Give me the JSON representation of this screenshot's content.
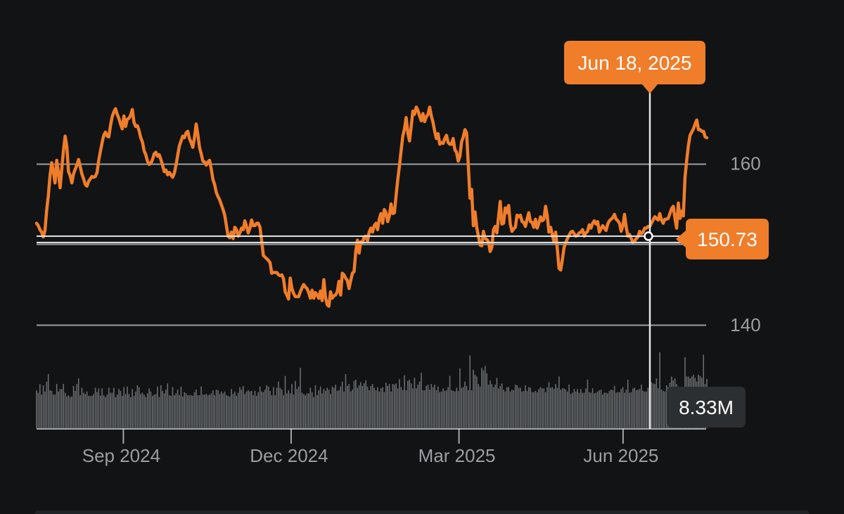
{
  "chart_data": {
    "type": "line",
    "colors": {
      "background": "#111314",
      "price_line": "#f07d2a",
      "grid": "#c9cdd0",
      "volume_bar": "#6a6d70",
      "tooltip_bg": "#f07d2a",
      "volume_tooltip_bg": "#2c2f32",
      "axis_text": "#9b9fa3"
    },
    "y_axis": {
      "position": "right",
      "ylim": [
        137,
        167
      ],
      "ticks": [
        140,
        160
      ]
    },
    "x_axis": {
      "tick_labels": [
        "Sep 2024",
        "Dec 2024",
        "Mar 2025",
        "Jun 2025"
      ]
    },
    "series": [
      {
        "values": [
          152.6,
          152.3,
          151.8,
          151.5,
          150.9,
          151.7,
          154.2,
          156.0,
          158.5,
          160.1,
          159.0,
          157.6,
          160.4,
          158.9,
          157.0,
          159.3,
          161.6,
          163.4,
          162.1,
          159.0,
          158.5,
          157.6,
          158.7,
          159.3,
          159.8,
          160.5,
          159.6,
          158.7,
          158.1,
          157.4,
          157.2,
          157.8,
          158.1,
          158.4,
          158.3,
          158.4,
          158.9,
          160.4,
          161.5,
          162.6,
          163.5,
          163.9,
          163.4,
          163.3,
          164.7,
          165.8,
          166.4,
          166.8,
          166.1,
          165.6,
          164.9,
          164.3,
          165.9,
          164.6,
          165.5,
          165.6,
          166.0,
          166.7,
          165.1,
          164.6,
          164.7,
          164.1,
          163.2,
          162.7,
          161.6,
          161.1,
          160.3,
          159.9,
          160.0,
          160.5,
          161.2,
          161.4,
          160.9,
          161.1,
          160.5,
          159.8,
          159.0,
          159.2,
          158.6,
          158.9,
          158.6,
          158.3,
          158.8,
          159.8,
          161.0,
          162.2,
          162.8,
          163.4,
          163.2,
          163.8,
          164.0,
          163.1,
          162.6,
          162.0,
          163.2,
          164.9,
          163.6,
          162.0,
          161.2,
          160.3,
          160.2,
          159.8,
          160.2,
          160.4,
          159.3,
          158.0,
          157.4,
          156.4,
          155.9,
          155.5,
          154.9,
          154.3,
          153.6,
          152.3,
          151.0,
          150.8,
          151.5,
          150.7,
          152.1,
          151.8,
          151.0,
          151.4,
          152.0,
          151.8,
          152.9,
          152.2,
          151.4,
          152.0,
          153.0,
          152.3,
          152.3,
          152.6,
          152.6,
          152.1,
          150.4,
          148.6,
          148.4,
          148.2,
          148.0,
          147.7,
          146.4,
          146.5,
          146.5,
          146.5,
          146.2,
          146.1,
          146.2,
          145.7,
          144.1,
          143.7,
          143.2,
          145.8,
          144.5,
          143.9,
          143.5,
          143.5,
          143.5,
          144.1,
          144.6,
          145.0,
          144.7,
          144.5,
          144.0,
          143.3,
          144.3,
          143.3,
          144.0,
          143.7,
          143.3,
          144.2,
          143.0,
          145.6,
          143.4,
          142.5,
          142.3,
          144.1,
          143.3,
          143.6,
          143.7,
          144.1,
          145.4,
          143.7,
          146.4,
          146.2,
          145.8,
          145.5,
          144.5,
          145.5,
          146.4,
          146.6,
          149.1,
          150.5,
          148.9,
          150.3,
          150.2,
          150.9,
          151.0,
          150.4,
          151.5,
          152.0,
          151.5,
          152.3,
          152.6,
          151.8,
          153.1,
          153.8,
          152.6,
          154.3,
          153.9,
          152.8,
          153.5,
          155.0,
          153.8,
          153.9,
          156.0,
          158.0,
          159.7,
          161.6,
          163.4,
          164.3,
          165.7,
          163.8,
          162.8,
          164.6,
          166.5,
          166.1,
          167.0,
          166.6,
          165.9,
          165.3,
          166.2,
          165.2,
          165.8,
          166.1,
          167.0,
          165.9,
          165.1,
          164.0,
          163.1,
          163.7,
          162.4,
          162.6,
          162.5,
          163.1,
          163.5,
          162.6,
          162.4,
          162.4,
          163.1,
          161.7,
          161.4,
          160.3,
          160.9,
          162.7,
          163.3,
          164.2,
          163.8,
          159.8,
          155.7,
          156.8,
          152.3,
          154.0,
          152.1,
          151.0,
          149.9,
          149.8,
          151.6,
          150.7,
          150.6,
          150.3,
          149.1,
          149.6,
          151.8,
          152.2,
          151.4,
          153.4,
          155.3,
          152.5,
          152.6,
          154.5,
          153.9,
          154.8,
          152.5,
          151.6,
          151.9,
          152.1,
          153.6,
          153.4,
          153.6,
          152.8,
          152.7,
          152.2,
          153.1,
          153.9,
          152.8,
          152.7,
          152.1,
          153.1,
          152.0,
          152.6,
          153.4,
          152.9,
          153.1,
          154.7,
          153.5,
          151.5,
          152.1,
          151.2,
          150.3,
          151.5,
          149.4,
          147.0,
          146.8,
          148.1,
          149.6,
          150.2,
          150.7,
          151.1,
          151.5,
          151.6,
          151.3,
          151.0,
          151.1,
          151.4,
          151.5,
          151.8,
          151.0,
          151.4,
          151.6,
          152.4,
          152.0,
          152.6,
          152.9,
          152.5,
          152.8,
          151.5,
          151.9,
          152.3,
          152.0,
          151.7,
          152.5,
          152.9,
          153.1,
          153.3,
          153.7,
          153.1,
          152.9,
          152.6,
          151.6,
          152.3,
          153.7,
          152.1,
          151.0,
          151.2,
          150.7,
          150.2,
          150.4,
          150.7,
          150.9,
          151.6,
          151.3,
          151.5,
          152.0,
          152.0,
          152.2,
          152.2,
          152.6,
          153.0,
          153.4,
          153.2,
          153.0,
          153.8,
          153.0,
          152.6,
          153.1,
          153.1,
          153.2,
          153.8,
          154.4,
          154.7,
          153.2,
          152.0,
          155.1,
          153.2,
          154.1,
          153.5,
          158.3,
          160.4,
          162.2,
          163.5,
          163.9,
          164.3,
          164.9,
          165.4,
          164.2,
          164.2,
          164.0,
          164.0,
          163.3,
          163.2
        ]
      }
    ],
    "volume_series_millions": [
      6.1,
      5.7,
      7.1,
      5.4,
      6.9,
      5.9,
      7.5,
      8.7,
      6.1,
      6.0,
      5.4,
      5.4,
      7.1,
      5.9,
      6.3,
      6.3,
      7.1,
      5.7,
      5.1,
      5.3,
      5.0,
      5.1,
      6.8,
      6.0,
      7.1,
      8.0,
      5.3,
      6.5,
      5.7,
      5.5,
      5.9,
      5.2,
      5.2,
      5.2,
      5.5,
      6.5,
      5.8,
      6.4,
      5.2,
      6.4,
      5.3,
      5.0,
      5.4,
      6.5,
      5.7,
      5.7,
      6.5,
      5.0,
      5.4,
      6.3,
      6.0,
      5.2,
      6.6,
      5.5,
      6.7,
      5.5,
      5.0,
      6.3,
      5.2,
      5.9,
      6.9,
      6.6,
      5.5,
      5.7,
      5.4,
      5.0,
      5.6,
      6.4,
      5.9,
      5.2,
      5.4,
      5.5,
      6.7,
      5.0,
      6.9,
      6.0,
      5.6,
      6.2,
      7.2,
      5.3,
      5.2,
      6.6,
      5.3,
      5.6,
      6.2,
      5.3,
      6.7,
      5.1,
      5.8,
      5.6,
      5.3,
      5.3,
      5.3,
      5.2,
      5.8,
      6.2,
      5.3,
      5.3,
      6.7,
      5.4,
      5.4,
      5.5,
      5.3,
      5.4,
      5.6,
      6.1,
      5.3,
      6.2,
      6.1,
      5.5,
      5.9,
      5.6,
      5.9,
      5.3,
      5.2,
      5.1,
      6.3,
      5.5,
      5.9,
      5.2,
      5.7,
      6.6,
      6.2,
      6.8,
      5.5,
      5.9,
      6.1,
      5.9,
      6.0,
      5.3,
      6.0,
      5.2,
      5.8,
      6.7,
      5.9,
      5.8,
      6.2,
      6.9,
      6.7,
      6.0,
      5.3,
      6.6,
      5.3,
      6.5,
      7.5,
      6.5,
      6.2,
      5.3,
      8.4,
      5.6,
      6.1,
      5.6,
      7.1,
      5.4,
      7.6,
      6.3,
      6.7,
      9.7,
      5.7,
      5.5,
      5.3,
      5.6,
      5.6,
      6.5,
      5.8,
      5.0,
      6.9,
      5.3,
      6.1,
      6.7,
      5.6,
      6.3,
      6.0,
      6.5,
      6.2,
      5.5,
      6.7,
      6.5,
      7.0,
      6.0,
      6.1,
      6.7,
      7.5,
      5.9,
      8.7,
      6.8,
      7.1,
      5.9,
      6.2,
      7.6,
      7.8,
      6.5,
      6.9,
      7.4,
      6.8,
      7.2,
      7.7,
      6.7,
      6.1,
      6.8,
      7.1,
      6.5,
      6.1,
      6.6,
      5.9,
      6.4,
      6.6,
      5.8,
      7.3,
      6.8,
      7.1,
      5.9,
      7.1,
      7.0,
      7.2,
      6.4,
      7.9,
      6.6,
      6.1,
      8.5,
      6.1,
      7.6,
      7.8,
      7.2,
      6.4,
      8.1,
      6.4,
      7.0,
      7.5,
      8.9,
      6.1,
      6.1,
      6.8,
      7.0,
      6.2,
      7.1,
      6.6,
      7.0,
      6.1,
      6.7,
      5.8,
      5.9,
      6.4,
      6.0,
      6.1,
      6.6,
      8.4,
      6.1,
      6.0,
      5.9,
      6.5,
      6.0,
      9.6,
      6.5,
      6.6,
      7.5,
      6.8,
      6.1,
      11.7,
      6.1,
      9.4,
      8.6,
      8.3,
      7.1,
      6.7,
      9.7,
      9.3,
      10.0,
      8.8,
      7.0,
      7.7,
      7.1,
      6.6,
      7.0,
      8.1,
      6.4,
      6.8,
      7.2,
      6.2,
      5.9,
      6.6,
      6.6,
      5.9,
      6.2,
      6.1,
      7.0,
      6.9,
      6.5,
      6.5,
      5.9,
      6.0,
      6.9,
      6.0,
      6.6,
      6.5,
      5.8,
      5.8,
      6.0,
      5.8,
      6.3,
      6.6,
      6.4,
      6.4,
      5.8,
      6.6,
      7.4,
      6.5,
      6.6,
      6.3,
      7.1,
      6.5,
      8.3,
      6.2,
      6.4,
      6.4,
      6.2,
      5.9,
      7.0,
      5.5,
      5.7,
      6.3,
      5.9,
      6.3,
      5.7,
      6.3,
      5.7,
      5.7,
      6.4,
      7.8,
      5.8,
      5.7,
      6.4,
      5.6,
      5.7,
      5.9,
      6.1,
      6.2,
      5.4,
      5.7,
      5.7,
      5.6,
      6.0,
      6.2,
      6.1,
      6.8,
      5.7,
      5.8,
      5.8,
      6.3,
      6.6,
      5.7,
      6.2,
      7.8,
      5.7,
      5.8,
      6.4,
      6.5,
      6.1,
      6.2,
      6.3,
      7.0,
      6.0,
      5.9,
      5.9,
      6.5,
      6.1,
      7.4,
      7.2,
      7.1,
      8.0,
      6.4,
      12.2,
      6.2,
      6.0,
      5.9,
      6.9,
      6.6,
      7.3,
      8.3,
      7.7,
      8.0,
      7.1,
      6.7,
      6.2,
      6.0,
      6.4,
      11.4,
      8.3,
      8.3,
      8.0,
      8.3,
      8.6,
      8.1,
      7.5,
      8.6,
      8.4,
      8.1,
      11.8,
      7.1,
      7.9
    ],
    "annotations": {
      "crosshair_date": "Jun 18, 2025",
      "crosshair_value": "150.73",
      "crosshair_volume": "8.33M"
    }
  }
}
